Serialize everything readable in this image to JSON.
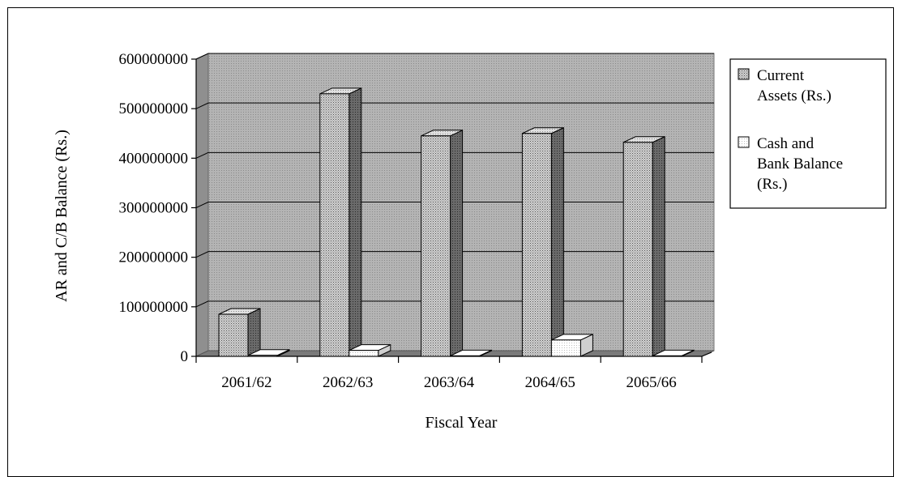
{
  "chart_data": {
    "type": "bar",
    "title": "",
    "xlabel": "Fiscal Year",
    "ylabel": "AR and C/B Balance (Rs.)",
    "categories": [
      "2061/62",
      "2062/63",
      "2063/64",
      "2064/65",
      "2065/66"
    ],
    "series": [
      {
        "name": "Current Assets (Rs.)",
        "values": [
          85000000,
          530000000,
          445000000,
          450000000,
          432000000
        ]
      },
      {
        "name": "Cash and Bank Balance (Rs.)",
        "values": [
          2000000,
          12000000,
          1000000,
          33000000,
          1000000
        ]
      }
    ],
    "ylim": [
      0,
      600000000
    ],
    "yticks": [
      "0",
      "100000000",
      "200000000",
      "300000000",
      "400000000",
      "500000000",
      "600000000"
    ],
    "grid": true,
    "legend_position": "right",
    "legend_lines": [
      [
        "Current",
        "Assets (Rs.)"
      ],
      [
        "Cash and",
        "Bank Balance",
        "(Rs.)"
      ]
    ],
    "colors": {
      "wall": "#a8a8a8",
      "floor": "#8c8c8c",
      "series1_front": "#9a9a9a",
      "series1_side": "#555555",
      "series1_top": "#c4c4c4",
      "series2_front": "#f2f2f2",
      "series2_side": "#c8c8c8",
      "series2_top": "#ffffff"
    }
  }
}
